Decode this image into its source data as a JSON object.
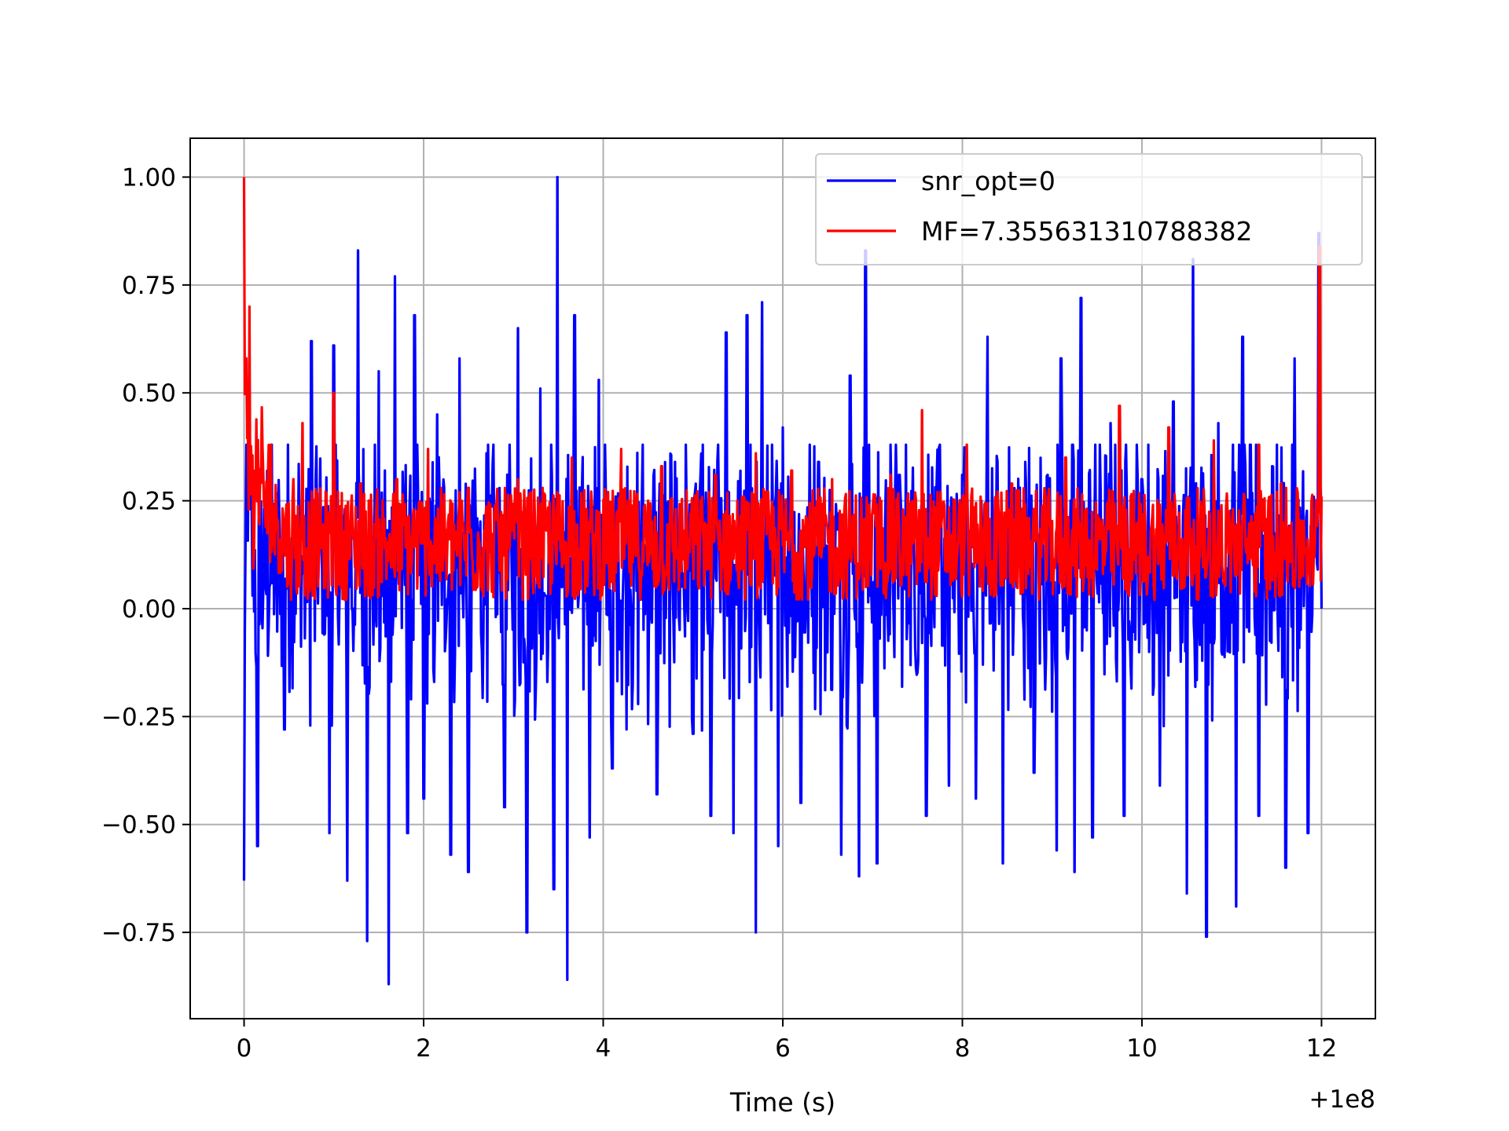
{
  "chart_data": {
    "type": "line",
    "xlabel": "Time (s)",
    "ylabel": "",
    "x_offset_label": "+1e8",
    "xlim": [
      -0.6,
      12.6
    ],
    "ylim": [
      -0.95,
      1.09
    ],
    "x_ticks": [
      0,
      2,
      4,
      6,
      8,
      10,
      12
    ],
    "y_ticks": [
      -0.75,
      -0.5,
      -0.25,
      0.0,
      0.25,
      0.5,
      0.75,
      1.0
    ],
    "y_tick_labels": [
      "−0.75",
      "−0.50",
      "−0.25",
      "0.00",
      "0.25",
      "0.50",
      "0.75",
      "1.00"
    ],
    "grid": true,
    "legend_position": "top-right",
    "series": [
      {
        "name": "snr_opt=0",
        "color": "#0000ff",
        "x_range": [
          0,
          12
        ],
        "peaks": [
          [
            0.0,
            -0.63
          ],
          [
            0.05,
            0.43
          ],
          [
            0.15,
            -0.55
          ],
          [
            0.3,
            0.31
          ],
          [
            0.45,
            -0.28
          ],
          [
            0.55,
            0.29
          ],
          [
            0.75,
            0.62
          ],
          [
            0.95,
            -0.52
          ],
          [
            1.0,
            0.61
          ],
          [
            1.15,
            -0.63
          ],
          [
            1.27,
            0.83
          ],
          [
            1.37,
            -0.77
          ],
          [
            1.5,
            0.55
          ],
          [
            1.61,
            -0.87
          ],
          [
            1.68,
            0.77
          ],
          [
            1.82,
            -0.52
          ],
          [
            1.9,
            0.68
          ],
          [
            2.0,
            -0.44
          ],
          [
            2.15,
            0.45
          ],
          [
            2.3,
            -0.57
          ],
          [
            2.4,
            0.58
          ],
          [
            2.5,
            -0.61
          ],
          [
            2.7,
            0.36
          ],
          [
            2.9,
            -0.46
          ],
          [
            3.05,
            0.65
          ],
          [
            3.15,
            -0.75
          ],
          [
            3.3,
            0.51
          ],
          [
            3.45,
            -0.65
          ],
          [
            3.49,
            1.0
          ],
          [
            3.6,
            -0.86
          ],
          [
            3.68,
            0.68
          ],
          [
            3.85,
            -0.53
          ],
          [
            3.95,
            0.53
          ],
          [
            4.1,
            -0.37
          ],
          [
            4.35,
            0.25
          ],
          [
            4.6,
            -0.43
          ],
          [
            4.8,
            0.34
          ],
          [
            5.0,
            -0.29
          ],
          [
            5.2,
            -0.48
          ],
          [
            5.37,
            0.64
          ],
          [
            5.45,
            -0.52
          ],
          [
            5.6,
            0.68
          ],
          [
            5.7,
            -0.75
          ],
          [
            5.77,
            0.71
          ],
          [
            5.95,
            -0.55
          ],
          [
            6.0,
            0.42
          ],
          [
            6.2,
            -0.45
          ],
          [
            6.4,
            0.34
          ],
          [
            6.65,
            -0.57
          ],
          [
            6.75,
            0.54
          ],
          [
            6.85,
            -0.62
          ],
          [
            6.92,
            0.83
          ],
          [
            7.05,
            -0.59
          ],
          [
            7.3,
            0.31
          ],
          [
            7.6,
            -0.48
          ],
          [
            7.75,
            0.38
          ],
          [
            7.85,
            -0.41
          ],
          [
            8.0,
            0.31
          ],
          [
            8.15,
            -0.44
          ],
          [
            8.28,
            0.63
          ],
          [
            8.45,
            -0.59
          ],
          [
            8.7,
            0.34
          ],
          [
            8.8,
            -0.38
          ],
          [
            8.95,
            0.31
          ],
          [
            9.05,
            -0.56
          ],
          [
            9.1,
            0.58
          ],
          [
            9.25,
            -0.61
          ],
          [
            9.32,
            0.72
          ],
          [
            9.45,
            -0.53
          ],
          [
            9.65,
            0.43
          ],
          [
            9.8,
            -0.48
          ],
          [
            10.0,
            0.3
          ],
          [
            10.2,
            -0.41
          ],
          [
            10.35,
            0.48
          ],
          [
            10.5,
            -0.66
          ],
          [
            10.57,
            0.81
          ],
          [
            10.72,
            -0.76
          ],
          [
            10.85,
            0.43
          ],
          [
            11.05,
            -0.69
          ],
          [
            11.12,
            0.63
          ],
          [
            11.3,
            -0.48
          ],
          [
            11.45,
            0.33
          ],
          [
            11.6,
            -0.6
          ],
          [
            11.7,
            0.58
          ],
          [
            11.85,
            -0.52
          ],
          [
            11.97,
            0.87
          ],
          [
            12.0,
            0.0
          ]
        ]
      },
      {
        "name": "MF=7.355631310788382",
        "color": "#ff0000",
        "x_range": [
          0,
          12
        ],
        "peaks": [
          [
            0.0,
            1.0
          ],
          [
            0.02,
            0.58
          ],
          [
            0.06,
            0.7
          ],
          [
            0.12,
            0.32
          ],
          [
            0.3,
            0.38
          ],
          [
            0.55,
            0.3
          ],
          [
            0.65,
            0.43
          ],
          [
            1.0,
            0.5
          ],
          [
            1.3,
            0.29
          ],
          [
            1.7,
            0.3
          ],
          [
            2.05,
            0.37
          ],
          [
            2.5,
            0.28
          ],
          [
            3.05,
            0.3
          ],
          [
            3.65,
            0.35
          ],
          [
            4.2,
            0.37
          ],
          [
            4.65,
            0.33
          ],
          [
            5.25,
            0.31
          ],
          [
            5.7,
            0.36
          ],
          [
            6.1,
            0.32
          ],
          [
            6.55,
            0.3
          ],
          [
            7.2,
            0.31
          ],
          [
            7.55,
            0.46
          ],
          [
            8.05,
            0.38
          ],
          [
            8.55,
            0.29
          ],
          [
            9.15,
            0.35
          ],
          [
            9.75,
            0.47
          ],
          [
            10.3,
            0.42
          ],
          [
            10.8,
            0.39
          ],
          [
            11.3,
            0.38
          ],
          [
            11.55,
            0.29
          ],
          [
            11.98,
            0.84
          ],
          [
            12.0,
            0.26
          ]
        ]
      }
    ]
  }
}
